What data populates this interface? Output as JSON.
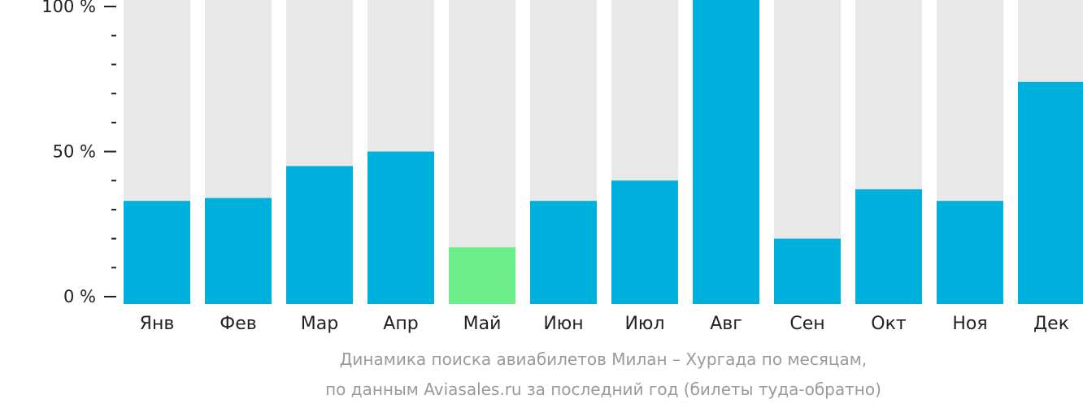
{
  "chart_data": {
    "type": "bar",
    "categories": [
      "Янв",
      "Фев",
      "Мар",
      "Апр",
      "Май",
      "Июн",
      "Июл",
      "Авг",
      "Сен",
      "Окт",
      "Ноя",
      "Дек"
    ],
    "values": [
      33,
      34,
      45,
      50,
      17,
      33,
      40,
      100,
      20,
      37,
      33,
      74
    ],
    "highlight_index": 4,
    "ylim": [
      0,
      100
    ],
    "yticks": [
      0,
      50,
      100
    ],
    "ytick_labels": [
      "0 %",
      "50 %",
      "100 %"
    ],
    "minor_ticks": 10,
    "colors": {
      "bar": "#00b0dc",
      "highlight": "#6cef8a",
      "background": "#e8e8e8",
      "axis": "#222222"
    },
    "caption": [
      "Динамика поиска авиабилетов Милан – Хургада по месяцам,",
      "по данным Aviasales.ru за последний год (билеты туда-обратно)"
    ]
  }
}
